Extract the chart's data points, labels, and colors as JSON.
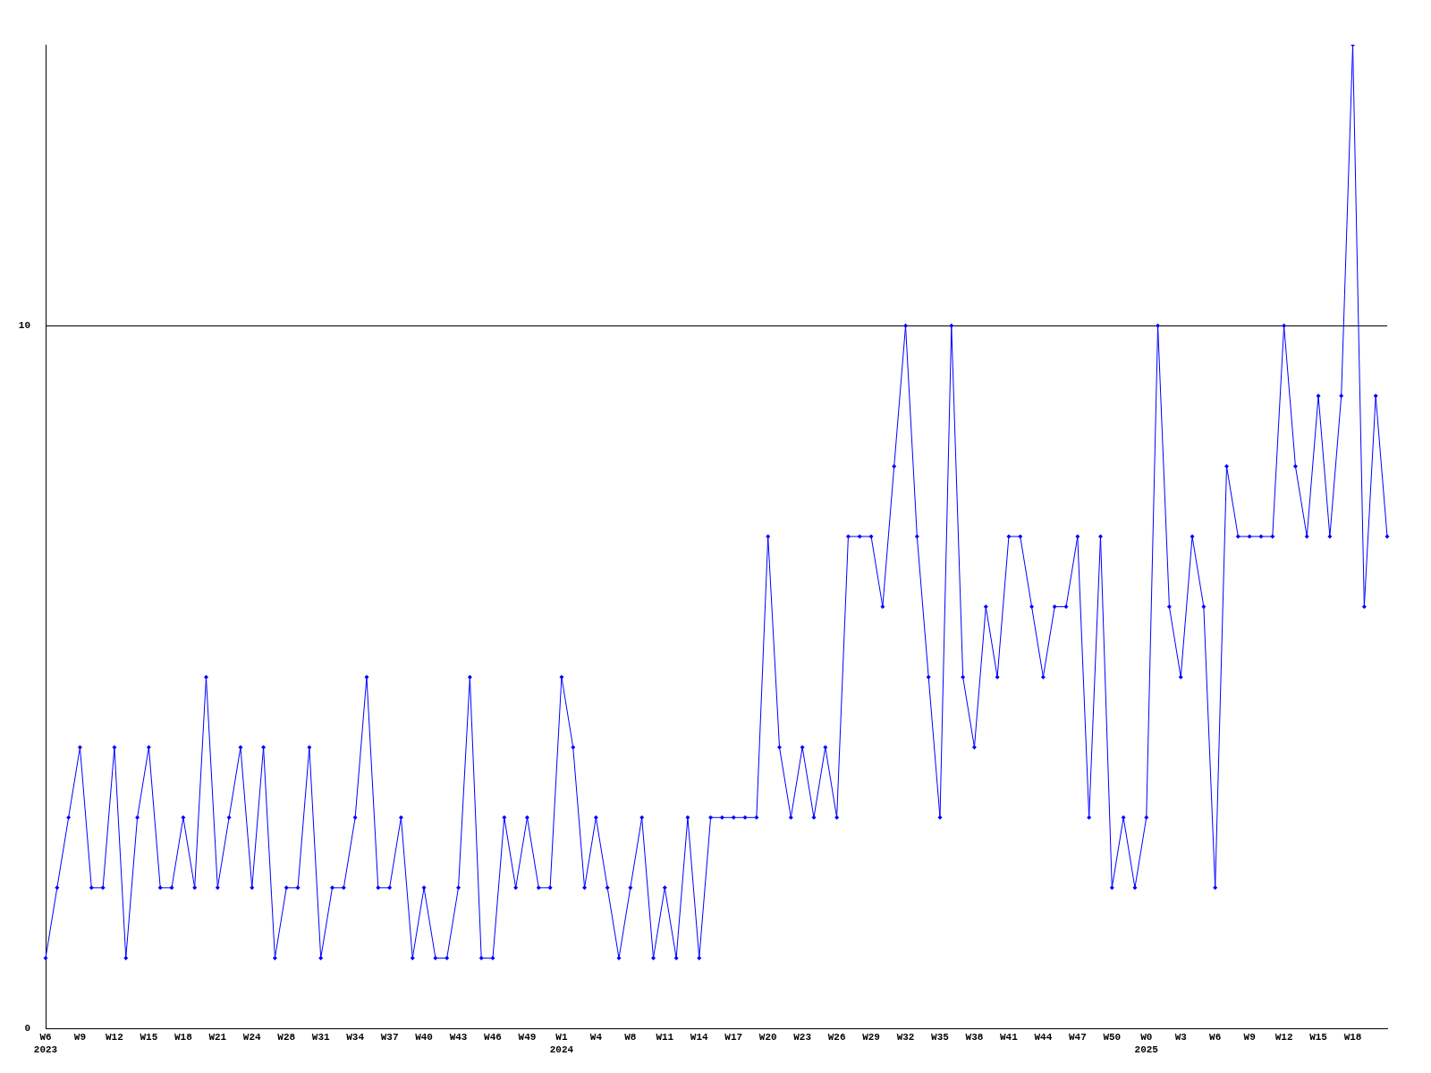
{
  "chart_data": {
    "type": "line",
    "categories": [
      "W6\n2023",
      null,
      null,
      "W9",
      null,
      null,
      "W12",
      null,
      null,
      "W15",
      null,
      null,
      "W18",
      null,
      null,
      "W21",
      null,
      null,
      "W24",
      null,
      null,
      "W28",
      null,
      null,
      "W31",
      null,
      null,
      "W34",
      null,
      null,
      "W37",
      null,
      null,
      "W40",
      null,
      null,
      "W43",
      null,
      null,
      "W46",
      null,
      null,
      "W49",
      null,
      null,
      "W1\n2024",
      null,
      null,
      "W4",
      null,
      null,
      "W8",
      null,
      null,
      "W11",
      null,
      null,
      "W14",
      null,
      null,
      "W17",
      null,
      null,
      "W20",
      null,
      null,
      "W23",
      null,
      null,
      "W26",
      null,
      null,
      "W29",
      null,
      null,
      "W32",
      null,
      null,
      "W35",
      null,
      null,
      "W38",
      null,
      null,
      "W41",
      null,
      null,
      "W44",
      null,
      null,
      "W47",
      null,
      null,
      "W50",
      null,
      null,
      "W0\n2025",
      null,
      null,
      "W3",
      null,
      null,
      "W6",
      null,
      null,
      "W9",
      null,
      null,
      "W12",
      null,
      null,
      "W15",
      null,
      null,
      "W18",
      null,
      null,
      null
    ],
    "series": [
      {
        "color": "#0000ff",
        "values": [
          1,
          2,
          3,
          4,
          2,
          2,
          4,
          1,
          3,
          4,
          2,
          2,
          3,
          2,
          5,
          2,
          3,
          4,
          2,
          4,
          1,
          2,
          2,
          4,
          1,
          2,
          2,
          3,
          5,
          2,
          2,
          3,
          1,
          2,
          1,
          1,
          2,
          5,
          1,
          1,
          3,
          2,
          3,
          2,
          2,
          5,
          4,
          2,
          3,
          2,
          1,
          2,
          3,
          1,
          2,
          1,
          3,
          1,
          3,
          3,
          3,
          3,
          3,
          7,
          4,
          3,
          4,
          3,
          4,
          3,
          7,
          7,
          7,
          6,
          8,
          10,
          7,
          5,
          3,
          10,
          5,
          4,
          6,
          5,
          7,
          7,
          6,
          5,
          6,
          6,
          7,
          3,
          7,
          2,
          3,
          2,
          3,
          10,
          6,
          5,
          7,
          6,
          2,
          8,
          7,
          7,
          7,
          7,
          10,
          8,
          7,
          9,
          7,
          9,
          14,
          6,
          9,
          7
        ]
      }
    ],
    "ylim": [
      0,
      14
    ],
    "yticks": [
      0,
      10
    ],
    "grid": "y",
    "marker": "diamond",
    "legend": false
  }
}
